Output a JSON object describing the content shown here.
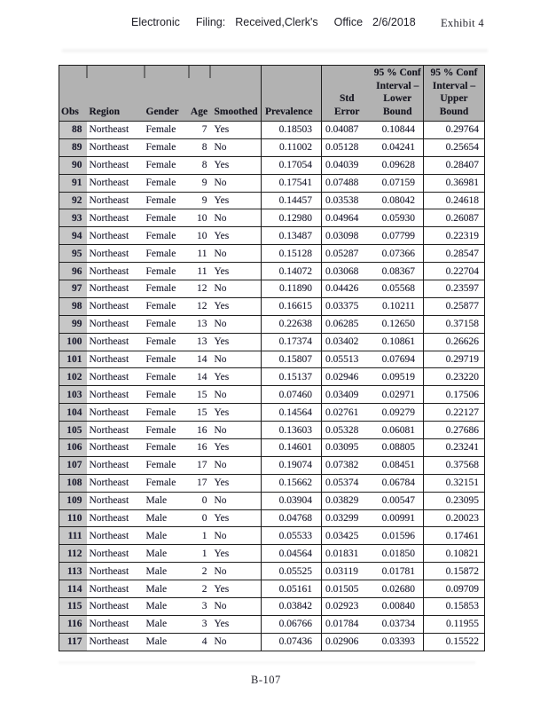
{
  "page": {
    "top_header": {
      "tokens": [
        "Electronic",
        "Filing:",
        "Received,Clerk's",
        "Office",
        "2/6/2018"
      ],
      "exhibit": "Exhibit 4"
    },
    "footer": "B-107"
  },
  "colors": {
    "header_bg": "#b2b2b2",
    "obs_column_bg": "#c7c7c7",
    "ink": "#1d1d30",
    "border": "#1c1c1c"
  },
  "table": {
    "columns": [
      "Obs",
      "Region",
      "Gender",
      "Age",
      "Smoothed",
      "Prevalence",
      "Std\nError",
      "95 % Conf\nInterval –\nLower\nBound",
      "95 % Conf\nInterval –\nUpper\nBound"
    ],
    "rows": [
      [
        "88",
        "Northeast",
        "Female",
        "7",
        "Yes",
        "0.18503",
        "0.04087",
        "0.10844",
        "0.29764"
      ],
      [
        "89",
        "Northeast",
        "Female",
        "8",
        "No",
        "0.11002",
        "0.05128",
        "0.04241",
        "0.25654"
      ],
      [
        "90",
        "Northeast",
        "Female",
        "8",
        "Yes",
        "0.17054",
        "0.04039",
        "0.09628",
        "0.28407"
      ],
      [
        "91",
        "Northeast",
        "Female",
        "9",
        "No",
        "0.17541",
        "0.07488",
        "0.07159",
        "0.36981"
      ],
      [
        "92",
        "Northeast",
        "Female",
        "9",
        "Yes",
        "0.14457",
        "0.03538",
        "0.08042",
        "0.24618"
      ],
      [
        "93",
        "Northeast",
        "Female",
        "10",
        "No",
        "0.12980",
        "0.04964",
        "0.05930",
        "0.26087"
      ],
      [
        "94",
        "Northeast",
        "Female",
        "10",
        "Yes",
        "0.13487",
        "0.03098",
        "0.07799",
        "0.22319"
      ],
      [
        "95",
        "Northeast",
        "Female",
        "11",
        "No",
        "0.15128",
        "0.05287",
        "0.07366",
        "0.28547"
      ],
      [
        "96",
        "Northeast",
        "Female",
        "11",
        "Yes",
        "0.14072",
        "0.03068",
        "0.08367",
        "0.22704"
      ],
      [
        "97",
        "Northeast",
        "Female",
        "12",
        "No",
        "0.11890",
        "0.04426",
        "0.05568",
        "0.23597"
      ],
      [
        "98",
        "Northeast",
        "Female",
        "12",
        "Yes",
        "0.16615",
        "0.03375",
        "0.10211",
        "0.25877"
      ],
      [
        "99",
        "Northeast",
        "Female",
        "13",
        "No",
        "0.22638",
        "0.06285",
        "0.12650",
        "0.37158"
      ],
      [
        "100",
        "Northeast",
        "Female",
        "13",
        "Yes",
        "0.17374",
        "0.03402",
        "0.10861",
        "0.26626"
      ],
      [
        "101",
        "Northeast",
        "Female",
        "14",
        "No",
        "0.15807",
        "0.05513",
        "0.07694",
        "0.29719"
      ],
      [
        "102",
        "Northeast",
        "Female",
        "14",
        "Yes",
        "0.15137",
        "0.02946",
        "0.09519",
        "0.23220"
      ],
      [
        "103",
        "Northeast",
        "Female",
        "15",
        "No",
        "0.07460",
        "0.03409",
        "0.02971",
        "0.17506"
      ],
      [
        "104",
        "Northeast",
        "Female",
        "15",
        "Yes",
        "0.14564",
        "0.02761",
        "0.09279",
        "0.22127"
      ],
      [
        "105",
        "Northeast",
        "Female",
        "16",
        "No",
        "0.13603",
        "0.05328",
        "0.06081",
        "0.27686"
      ],
      [
        "106",
        "Northeast",
        "Female",
        "16",
        "Yes",
        "0.14601",
        "0.03095",
        "0.08805",
        "0.23241"
      ],
      [
        "107",
        "Northeast",
        "Female",
        "17",
        "No",
        "0.19074",
        "0.07382",
        "0.08451",
        "0.37568"
      ],
      [
        "108",
        "Northeast",
        "Female",
        "17",
        "Yes",
        "0.15662",
        "0.05374",
        "0.06784",
        "0.32151"
      ],
      [
        "109",
        "Northeast",
        "Male",
        "0",
        "No",
        "0.03904",
        "0.03829",
        "0.00547",
        "0.23095"
      ],
      [
        "110",
        "Northeast",
        "Male",
        "0",
        "Yes",
        "0.04768",
        "0.03299",
        "0.00991",
        "0.20023"
      ],
      [
        "111",
        "Northeast",
        "Male",
        "1",
        "No",
        "0.05533",
        "0.03425",
        "0.01596",
        "0.17461"
      ],
      [
        "112",
        "Northeast",
        "Male",
        "1",
        "Yes",
        "0.04564",
        "0.01831",
        "0.01850",
        "0.10821"
      ],
      [
        "113",
        "Northeast",
        "Male",
        "2",
        "No",
        "0.05525",
        "0.03119",
        "0.01781",
        "0.15872"
      ],
      [
        "114",
        "Northeast",
        "Male",
        "2",
        "Yes",
        "0.05161",
        "0.01505",
        "0.02680",
        "0.09709"
      ],
      [
        "115",
        "Northeast",
        "Male",
        "3",
        "No",
        "0.03842",
        "0.02923",
        "0.00840",
        "0.15853"
      ],
      [
        "116",
        "Northeast",
        "Male",
        "3",
        "Yes",
        "0.06766",
        "0.01784",
        "0.03734",
        "0.11955"
      ],
      [
        "117",
        "Northeast",
        "Male",
        "4",
        "No",
        "0.07436",
        "0.02906",
        "0.03393",
        "0.15522"
      ]
    ]
  }
}
